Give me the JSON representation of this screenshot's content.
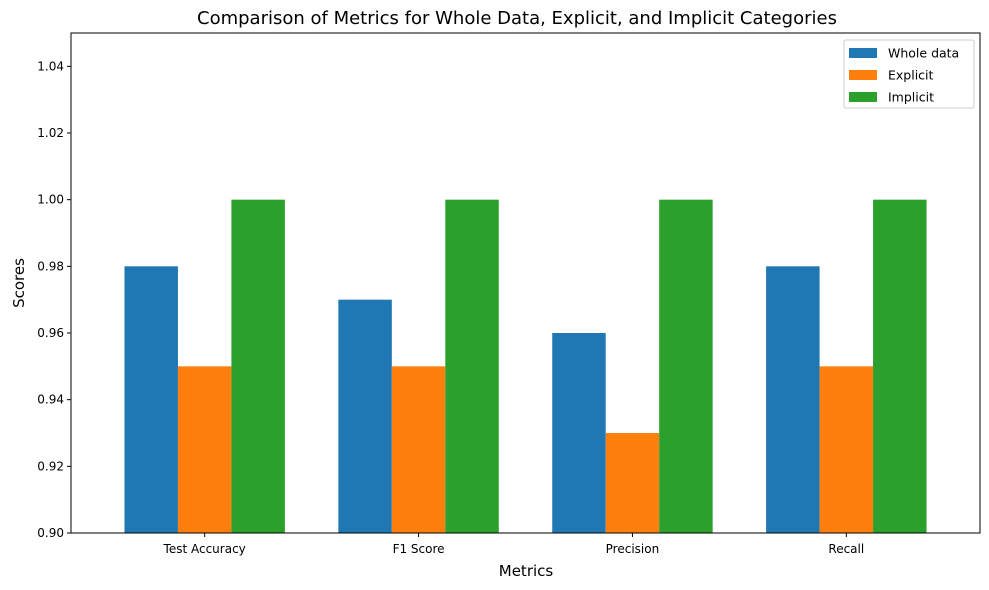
{
  "chart_data": {
    "type": "bar",
    "title": "Comparison of Metrics for Whole Data, Explicit, and Implicit Categories",
    "xlabel": "Metrics",
    "ylabel": "Scores",
    "categories": [
      "Test Accuracy",
      "F1 Score",
      "Precision",
      "Recall"
    ],
    "series": [
      {
        "name": "Whole data",
        "color": "#1f77b4",
        "values": [
          0.98,
          0.97,
          0.96,
          0.98
        ]
      },
      {
        "name": "Explicit",
        "color": "#ff7f0e",
        "values": [
          0.95,
          0.95,
          0.93,
          0.95
        ]
      },
      {
        "name": "Implicit",
        "color": "#2ca02c",
        "values": [
          1.0,
          1.0,
          1.0,
          1.0
        ]
      }
    ],
    "ylim": [
      0.9,
      1.05
    ],
    "yticks": [
      "0.90",
      "0.92",
      "0.94",
      "0.96",
      "0.98",
      "1.00",
      "1.02",
      "1.04"
    ],
    "grid": false,
    "legend_position": "top-right"
  }
}
